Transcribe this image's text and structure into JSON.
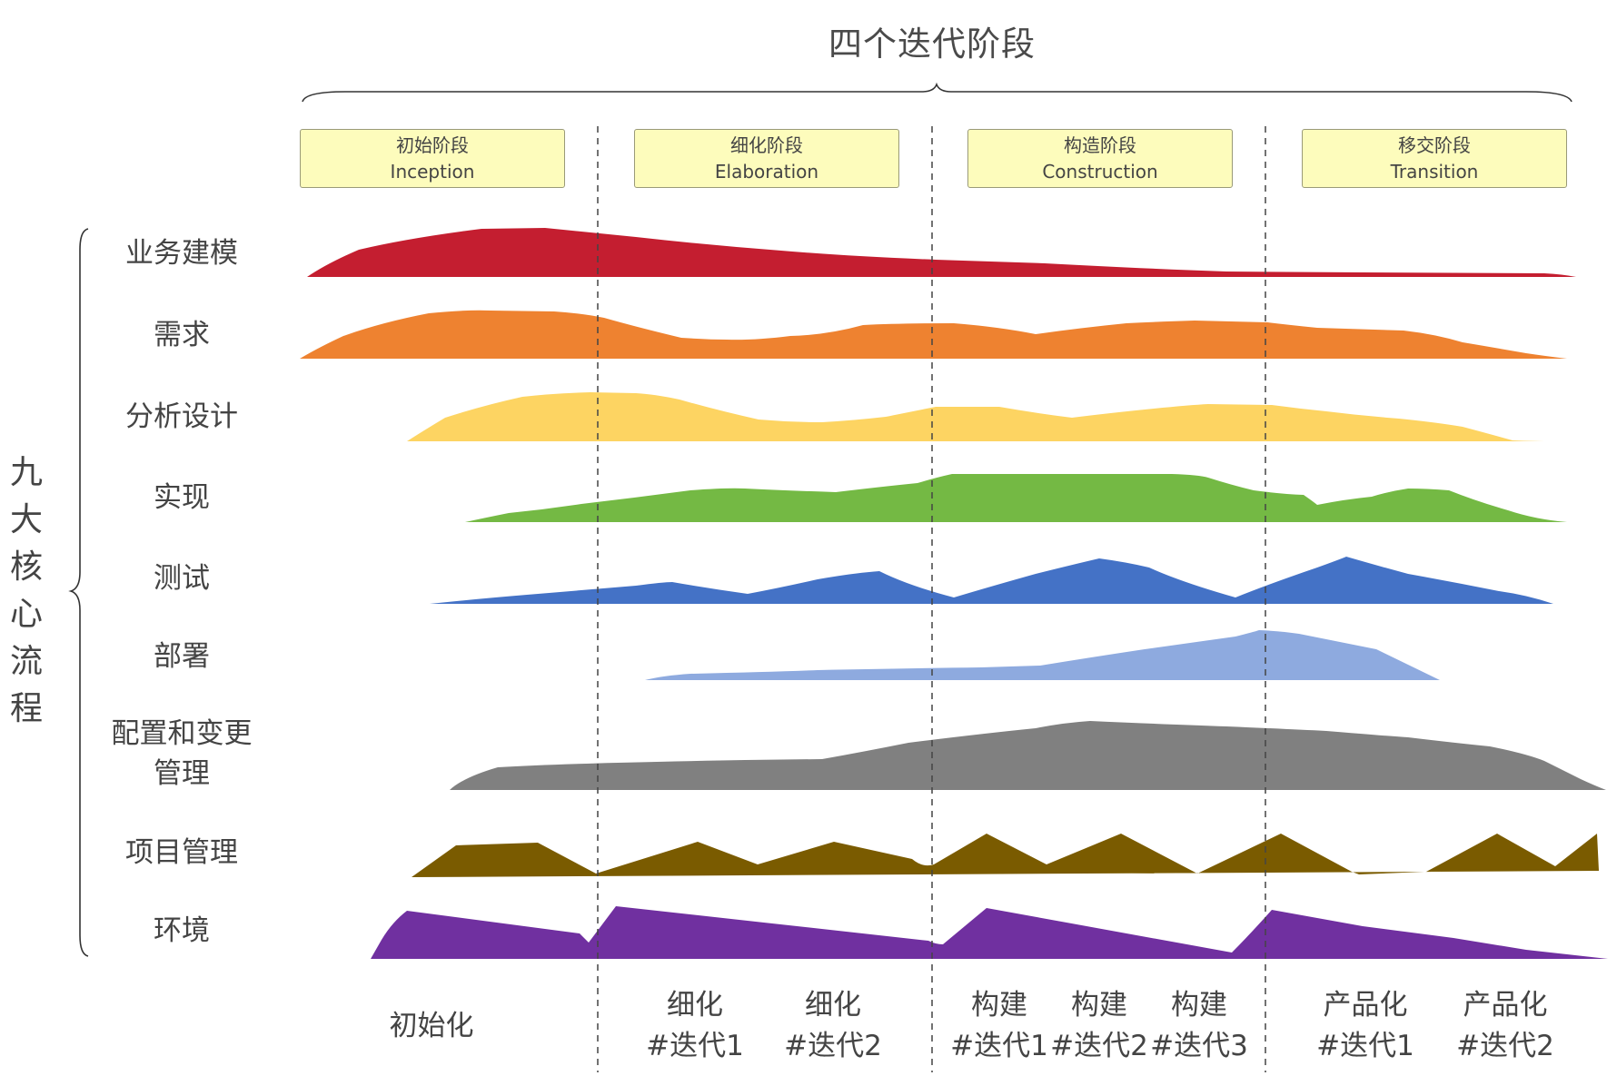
{
  "title": "四个迭代阶段",
  "core_title": "九大核心流程",
  "phases": [
    {
      "cn": "初始阶段",
      "en": "Inception"
    },
    {
      "cn": "细化阶段",
      "en": "Elaboration"
    },
    {
      "cn": "构造阶段",
      "en": "Construction"
    },
    {
      "cn": "移交阶段",
      "en": "Transition"
    }
  ],
  "processes": [
    {
      "label": "业务建模",
      "color": "#c41e30"
    },
    {
      "label": "需求",
      "color": "#ee8230"
    },
    {
      "label": "分析设计",
      "color": "#fdd462"
    },
    {
      "label": "实现",
      "color": "#74b944"
    },
    {
      "label": "测试",
      "color": "#4472c6"
    },
    {
      "label": "部署",
      "color": "#8eaadf"
    },
    {
      "label": "配置和变更管理",
      "color": "#808080"
    },
    {
      "label": "项目管理",
      "color": "#7a5b00"
    },
    {
      "label": "环境",
      "color": "#7030a0"
    }
  ],
  "iterations": [
    {
      "label": "初始化"
    },
    {
      "label": "细化 #迭代1"
    },
    {
      "label": "细化 #迭代2"
    },
    {
      "label": "构建 #迭代1"
    },
    {
      "label": "构建 #迭代2"
    },
    {
      "label": "构建 #迭代3"
    },
    {
      "label": "产品化 #迭代1"
    },
    {
      "label": "产品化 #迭代2"
    }
  ]
}
